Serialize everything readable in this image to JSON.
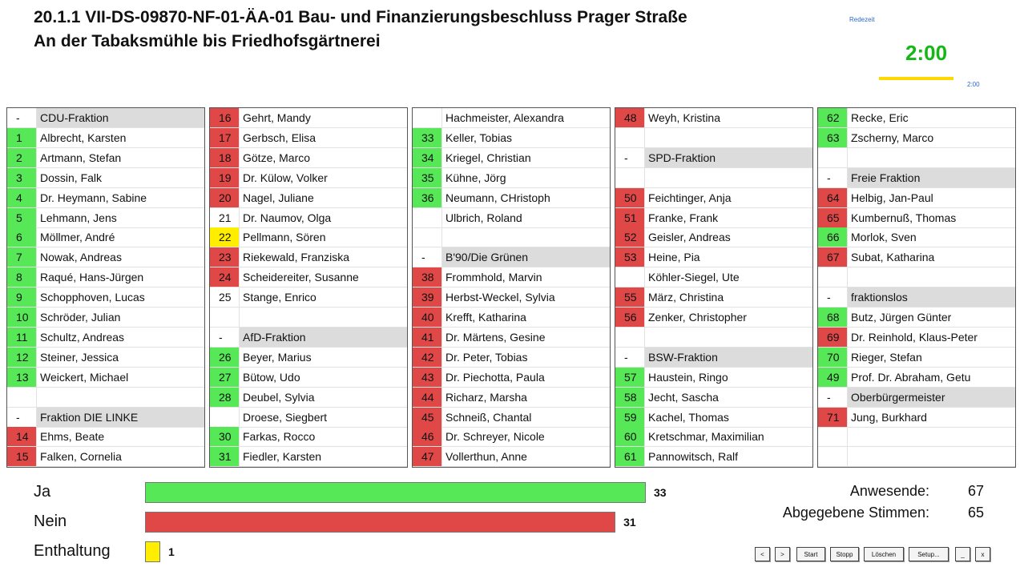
{
  "header": {
    "title_line1": "20.1.1 VII-DS-09870-NF-01-ÄA-01 Bau- und Finanzierungsbeschluss Prager Straße",
    "title_line2": "An der Tabaksmühle bis Friedhofsgärtnerei"
  },
  "timer": {
    "label": "Redezeit",
    "time": "2:00",
    "small_time": "2:00"
  },
  "seats": {
    "columns": [
      [
        {
          "n": "-",
          "name": "CDU-Fraktion",
          "group": true
        },
        {
          "n": "1",
          "name": "Albrecht, Karsten",
          "s": "ja"
        },
        {
          "n": "2",
          "name": "Artmann, Stefan",
          "s": "ja"
        },
        {
          "n": "3",
          "name": "Dossin, Falk",
          "s": "ja"
        },
        {
          "n": "4",
          "name": "Dr. Heymann, Sabine",
          "s": "ja"
        },
        {
          "n": "5",
          "name": "Lehmann, Jens",
          "s": "ja"
        },
        {
          "n": "6",
          "name": "Möllmer, André",
          "s": "ja"
        },
        {
          "n": "7",
          "name": "Nowak, Andreas",
          "s": "ja"
        },
        {
          "n": "8",
          "name": "Raqué, Hans-Jürgen",
          "s": "ja"
        },
        {
          "n": "9",
          "name": "Schopphoven, Lucas",
          "s": "ja"
        },
        {
          "n": "10",
          "name": "Schröder, Julian",
          "s": "ja"
        },
        {
          "n": "11",
          "name": "Schultz, Andreas",
          "s": "ja"
        },
        {
          "n": "12",
          "name": "Steiner, Jessica",
          "s": "ja"
        },
        {
          "n": "13",
          "name": "Weickert, Michael",
          "s": "ja"
        },
        null,
        {
          "n": "-",
          "name": "Fraktion DIE LINKE",
          "group": true
        },
        {
          "n": "14",
          "name": "Ehms, Beate",
          "s": "nein"
        },
        {
          "n": "15",
          "name": "Falken, Cornelia",
          "s": "nein"
        }
      ],
      [
        {
          "n": "16",
          "name": "Gehrt, Mandy",
          "s": "nein"
        },
        {
          "n": "17",
          "name": "Gerbsch, Elisa",
          "s": "nein"
        },
        {
          "n": "18",
          "name": "Götze, Marco",
          "s": "nein"
        },
        {
          "n": "19",
          "name": "Dr. Külow, Volker",
          "s": "nein"
        },
        {
          "n": "20",
          "name": "Nagel, Juliane",
          "s": "nein"
        },
        {
          "n": "21",
          "name": "Dr. Naumov, Olga"
        },
        {
          "n": "22",
          "name": "Pellmann, Sören",
          "s": "enthaltung"
        },
        {
          "n": "23",
          "name": "Riekewald, Franziska",
          "s": "nein"
        },
        {
          "n": "24",
          "name": "Scheidereiter, Susanne",
          "s": "nein"
        },
        {
          "n": "25",
          "name": "Stange, Enrico"
        },
        null,
        {
          "n": "-",
          "name": "AfD-Fraktion",
          "group": true
        },
        {
          "n": "26",
          "name": "Beyer, Marius",
          "s": "ja"
        },
        {
          "n": "27",
          "name": "Bütow, Udo",
          "s": "ja"
        },
        {
          "n": "28",
          "name": "Deubel, Sylvia",
          "s": "ja"
        },
        {
          "n": null,
          "name": "Droese, Siegbert"
        },
        {
          "n": "30",
          "name": "Farkas, Rocco",
          "s": "ja"
        },
        {
          "n": "31",
          "name": "Fiedler, Karsten",
          "s": "ja"
        }
      ],
      [
        {
          "n": null,
          "name": "Hachmeister, Alexandra"
        },
        {
          "n": "33",
          "name": "Keller, Tobias",
          "s": "ja"
        },
        {
          "n": "34",
          "name": "Kriegel, Christian",
          "s": "ja"
        },
        {
          "n": "35",
          "name": "Kühne, Jörg",
          "s": "ja"
        },
        {
          "n": "36",
          "name": "Neumann, CHristoph",
          "s": "ja"
        },
        {
          "n": null,
          "name": "Ulbrich, Roland"
        },
        null,
        {
          "n": "-",
          "name": "B'90/Die Grünen",
          "group": true
        },
        {
          "n": "38",
          "name": "Frommhold, Marvin",
          "s": "nein"
        },
        {
          "n": "39",
          "name": "Herbst-Weckel, Sylvia",
          "s": "nein"
        },
        {
          "n": "40",
          "name": "Krefft, Katharina",
          "s": "nein"
        },
        {
          "n": "41",
          "name": "Dr. Märtens, Gesine",
          "s": "nein"
        },
        {
          "n": "42",
          "name": "Dr. Peter, Tobias",
          "s": "nein"
        },
        {
          "n": "43",
          "name": "Dr. Piechotta, Paula",
          "s": "nein"
        },
        {
          "n": "44",
          "name": "Richarz, Marsha",
          "s": "nein"
        },
        {
          "n": "45",
          "name": "Schneiß, Chantal",
          "s": "nein"
        },
        {
          "n": "46",
          "name": "Dr. Schreyer, Nicole",
          "s": "nein"
        },
        {
          "n": "47",
          "name": "Vollerthun, Anne",
          "s": "nein"
        }
      ],
      [
        {
          "n": "48",
          "name": "Weyh, Kristina",
          "s": "nein"
        },
        null,
        {
          "n": "-",
          "name": "SPD-Fraktion",
          "group": true
        },
        null,
        {
          "n": "50",
          "name": "Feichtinger, Anja",
          "s": "nein"
        },
        {
          "n": "51",
          "name": "Franke, Frank",
          "s": "nein"
        },
        {
          "n": "52",
          "name": "Geisler, Andreas",
          "s": "nein"
        },
        {
          "n": "53",
          "name": "Heine, Pia",
          "s": "nein"
        },
        {
          "n": null,
          "name": "Köhler-Siegel, Ute"
        },
        {
          "n": "55",
          "name": "März, Christina",
          "s": "nein"
        },
        {
          "n": "56",
          "name": "Zenker, Christopher",
          "s": "nein"
        },
        null,
        {
          "n": "-",
          "name": "BSW-Fraktion",
          "group": true
        },
        {
          "n": "57",
          "name": "Haustein, Ringo",
          "s": "ja"
        },
        {
          "n": "58",
          "name": "Jecht, Sascha",
          "s": "ja"
        },
        {
          "n": "59",
          "name": "Kachel, Thomas",
          "s": "ja"
        },
        {
          "n": "60",
          "name": "Kretschmar, Maximilian",
          "s": "ja"
        },
        {
          "n": "61",
          "name": "Pannowitsch, Ralf",
          "s": "ja"
        }
      ],
      [
        {
          "n": "62",
          "name": "Recke, Eric",
          "s": "ja"
        },
        {
          "n": "63",
          "name": "Zscherny, Marco",
          "s": "ja"
        },
        null,
        {
          "n": "-",
          "name": "Freie Fraktion",
          "group": true
        },
        {
          "n": "64",
          "name": "Helbig, Jan-Paul",
          "s": "nein"
        },
        {
          "n": "65",
          "name": "Kumbernuß, Thomas",
          "s": "nein"
        },
        {
          "n": "66",
          "name": "Morlok, Sven",
          "s": "ja"
        },
        {
          "n": "67",
          "name": "Subat, Katharina",
          "s": "nein"
        },
        null,
        {
          "n": "-",
          "name": "fraktionslos",
          "group": true
        },
        {
          "n": "68",
          "name": "Butz, Jürgen Günter",
          "s": "ja"
        },
        {
          "n": "69",
          "name": "Dr. Reinhold, Klaus-Peter",
          "s": "nein"
        },
        {
          "n": "70",
          "name": "Rieger, Stefan",
          "s": "ja"
        },
        {
          "n": "49",
          "name": "Prof. Dr. Abraham, Getu",
          "s": "ja"
        },
        {
          "n": "-",
          "name": "Oberbürgermeister",
          "group": true
        },
        {
          "n": "71",
          "name": "Jung, Burkhard",
          "s": "nein"
        },
        null,
        null
      ]
    ]
  },
  "results": {
    "type": "bar",
    "categories": [
      "Ja",
      "Nein",
      "Enthaltung"
    ],
    "values": [
      33,
      31,
      1
    ],
    "colors": [
      "#57e857",
      "#e04848",
      "#ffee00"
    ]
  },
  "stats": [
    {
      "label": "Anwesende:",
      "value": 67
    },
    {
      "label": "Abgegebene Stimmen:",
      "value": 65
    }
  ],
  "buttons": [
    "<",
    ">",
    "Start",
    "Stopp",
    "Löschen",
    "Setup...",
    "_",
    "x"
  ]
}
